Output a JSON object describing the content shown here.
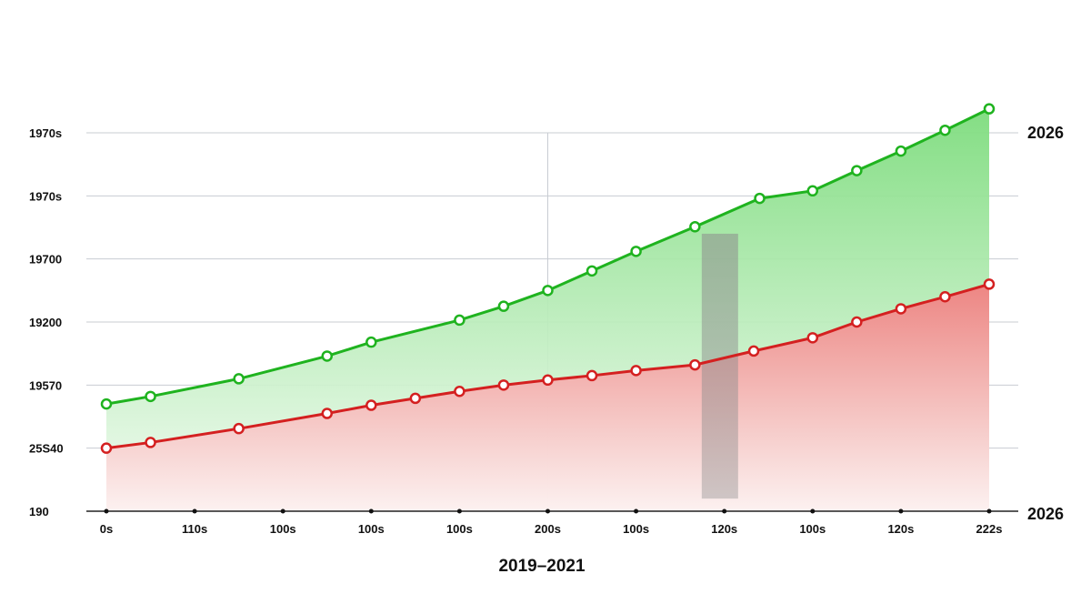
{
  "chart_data": {
    "type": "area",
    "xlabel": "2019–2021",
    "x_tick_labels": [
      "0s",
      "110s",
      "100s",
      "100s",
      "100s",
      "200s",
      "100s",
      "120s",
      "100s",
      "120s",
      "222s"
    ],
    "y_tick_labels": [
      "190",
      "25S40",
      "19570",
      "19200",
      "19700",
      "1970s",
      "1970s"
    ],
    "right_labels": [
      "2026",
      "2026"
    ],
    "ylim": [
      0,
      6
    ],
    "xlim": [
      0,
      10
    ],
    "series": [
      {
        "color": "#1fb31f",
        "fill_top": "#7ddc7d",
        "fill_bottom": "#f2fbf2",
        "points": [
          [
            0,
            1.7
          ],
          [
            0.5,
            1.82
          ],
          [
            1.5,
            2.1
          ],
          [
            2.5,
            2.46
          ],
          [
            3.0,
            2.68
          ],
          [
            4.0,
            3.03
          ],
          [
            4.5,
            3.25
          ],
          [
            5.0,
            3.5
          ],
          [
            5.5,
            3.81
          ],
          [
            6.0,
            4.12
          ],
          [
            6.667,
            4.51
          ],
          [
            7.4,
            4.96
          ],
          [
            8.0,
            5.08
          ],
          [
            8.5,
            5.4
          ],
          [
            9.0,
            5.71
          ],
          [
            9.5,
            6.04
          ],
          [
            10.0,
            6.38
          ]
        ]
      },
      {
        "color": "#d42020",
        "fill_top": "#f08080",
        "fill_bottom": "#fdf0f0",
        "points": [
          [
            0,
            1.0
          ],
          [
            0.5,
            1.09
          ],
          [
            1.5,
            1.31
          ],
          [
            2.5,
            1.55
          ],
          [
            3.0,
            1.68
          ],
          [
            3.5,
            1.79
          ],
          [
            4.0,
            1.9
          ],
          [
            4.5,
            2.0
          ],
          [
            5.0,
            2.08
          ],
          [
            5.5,
            2.15
          ],
          [
            6.0,
            2.23
          ],
          [
            6.667,
            2.32
          ],
          [
            7.333,
            2.54
          ],
          [
            8.0,
            2.75
          ],
          [
            8.5,
            3.0
          ],
          [
            9.0,
            3.21
          ],
          [
            9.5,
            3.4
          ],
          [
            10.0,
            3.6
          ]
        ]
      }
    ],
    "highlight_band": {
      "x_center": 6.95,
      "y_from": 0.2,
      "y_to": 4.4,
      "color": "#8c8c8c"
    },
    "crosshair_x": 5.0,
    "grid": true
  }
}
